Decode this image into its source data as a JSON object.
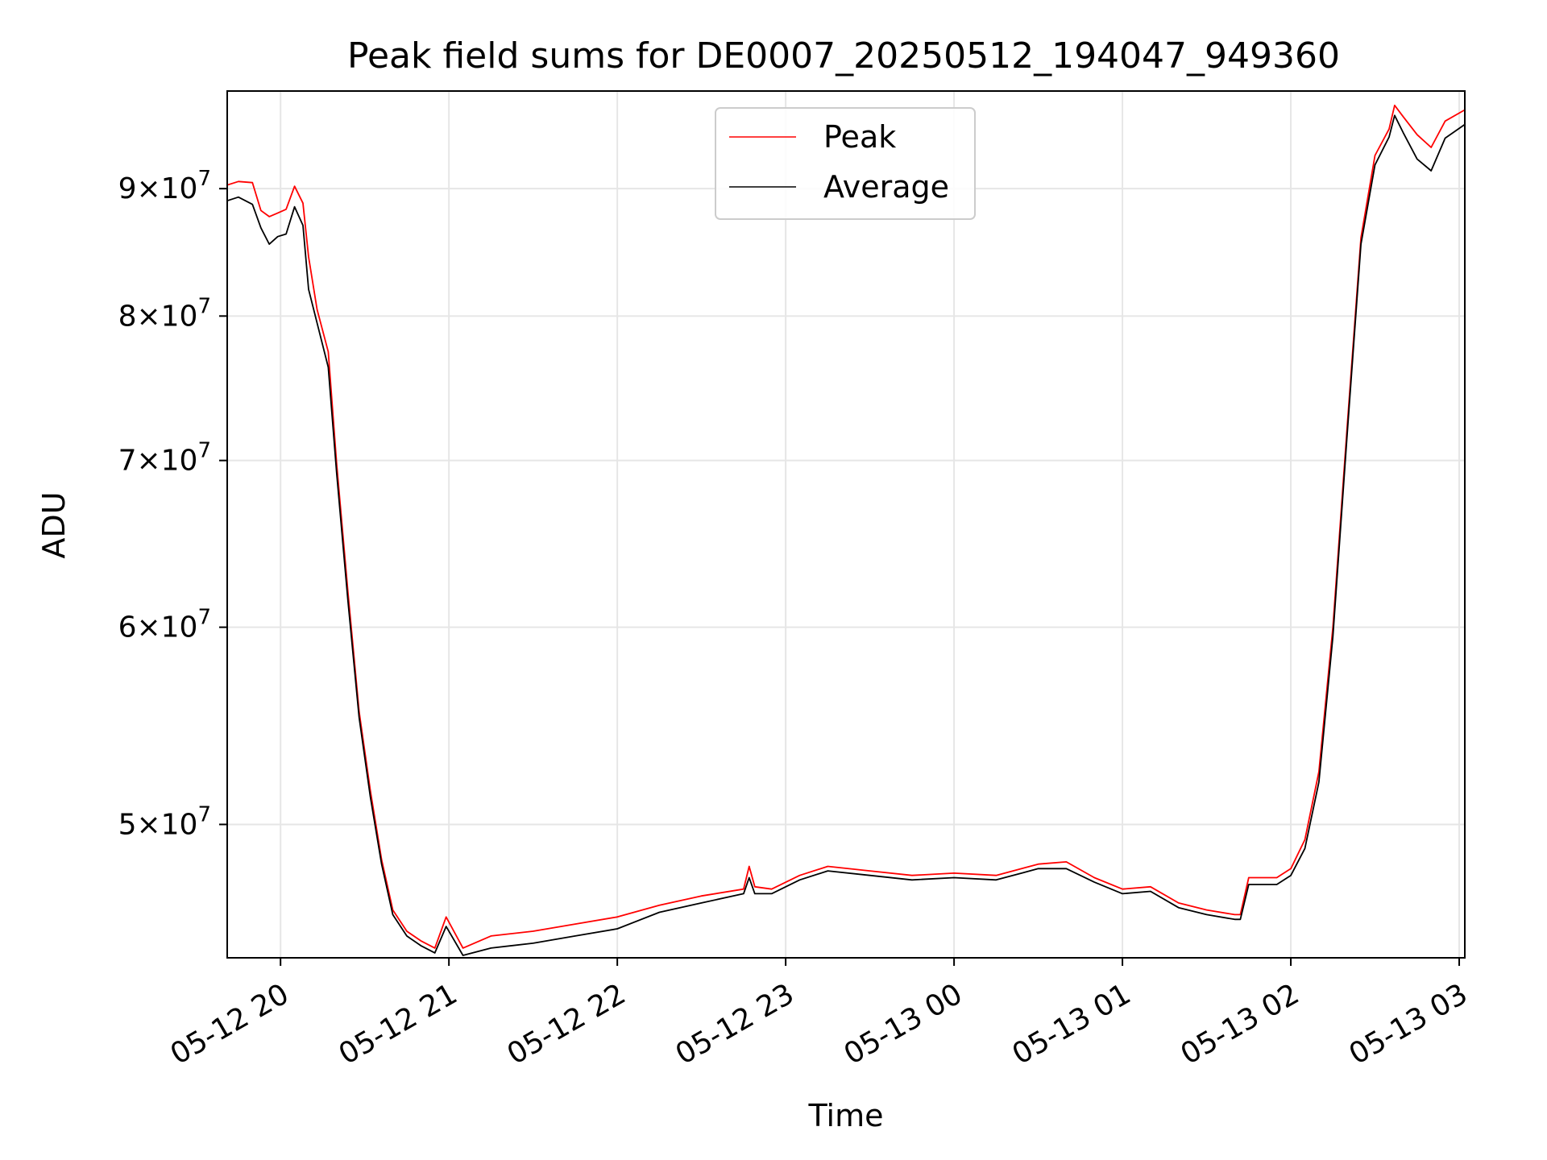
{
  "chart_data": {
    "type": "line",
    "title": "Peak field sums for DE0007_20250512_194047_949360",
    "xlabel": "Time",
    "ylabel": "ADU",
    "y_scale": "log",
    "grid": true,
    "legend_position": "top-center",
    "xlim": [
      "2025-05-12 19:41",
      "2025-05-13 03:02"
    ],
    "ylim": [
      44200000,
      98500000
    ],
    "x_ticks": [
      {
        "value": "2025-05-12 20:00",
        "label": "05-12 20"
      },
      {
        "value": "2025-05-12 21:00",
        "label": "05-12 21"
      },
      {
        "value": "2025-05-12 22:00",
        "label": "05-12 22"
      },
      {
        "value": "2025-05-12 23:00",
        "label": "05-12 23"
      },
      {
        "value": "2025-05-13 00:00",
        "label": "05-13 00"
      },
      {
        "value": "2025-05-13 01:00",
        "label": "05-13 01"
      },
      {
        "value": "2025-05-13 02:00",
        "label": "05-13 02"
      },
      {
        "value": "2025-05-13 03:00",
        "label": "05-13 03"
      }
    ],
    "y_ticks": [
      {
        "value": 50000000,
        "mantissa": "5",
        "base": "10",
        "exponent": "7"
      },
      {
        "value": 60000000,
        "mantissa": "6",
        "base": "10",
        "exponent": "7"
      },
      {
        "value": 70000000,
        "mantissa": "7",
        "base": "10",
        "exponent": "7"
      },
      {
        "value": 80000000,
        "mantissa": "8",
        "base": "10",
        "exponent": "7"
      },
      {
        "value": 90000000,
        "mantissa": "9",
        "base": "10",
        "exponent": "7"
      }
    ],
    "series": [
      {
        "name": "Peak",
        "color": "#ff0000",
        "x": [
          "2025-05-12 19:41",
          "2025-05-12 19:45",
          "2025-05-12 19:50",
          "2025-05-12 19:53",
          "2025-05-12 19:56",
          "2025-05-12 19:59",
          "2025-05-12 20:02",
          "2025-05-12 20:05",
          "2025-05-12 20:08",
          "2025-05-12 20:10",
          "2025-05-12 20:13",
          "2025-05-12 20:17",
          "2025-05-12 20:20",
          "2025-05-12 20:24",
          "2025-05-12 20:28",
          "2025-05-12 20:32",
          "2025-05-12 20:36",
          "2025-05-12 20:40",
          "2025-05-12 20:45",
          "2025-05-12 20:50",
          "2025-05-12 20:55",
          "2025-05-12 20:59",
          "2025-05-12 21:05",
          "2025-05-12 21:15",
          "2025-05-12 21:30",
          "2025-05-12 21:45",
          "2025-05-12 22:00",
          "2025-05-12 22:15",
          "2025-05-12 22:30",
          "2025-05-12 22:45",
          "2025-05-12 22:47",
          "2025-05-12 22:49",
          "2025-05-12 22:55",
          "2025-05-12 23:05",
          "2025-05-12 23:15",
          "2025-05-12 23:30",
          "2025-05-12 23:45",
          "2025-05-13 00:00",
          "2025-05-13 00:15",
          "2025-05-13 00:30",
          "2025-05-13 00:40",
          "2025-05-13 00:50",
          "2025-05-13 01:00",
          "2025-05-13 01:10",
          "2025-05-13 01:20",
          "2025-05-13 01:30",
          "2025-05-13 01:40",
          "2025-05-13 01:42",
          "2025-05-13 01:45",
          "2025-05-13 01:55",
          "2025-05-13 02:00",
          "2025-05-13 02:05",
          "2025-05-13 02:10",
          "2025-05-13 02:15",
          "2025-05-13 02:20",
          "2025-05-13 02:25",
          "2025-05-13 02:30",
          "2025-05-13 02:35",
          "2025-05-13 02:37",
          "2025-05-13 02:40",
          "2025-05-13 02:45",
          "2025-05-13 02:50",
          "2025-05-13 02:55",
          "2025-05-13 03:02"
        ],
        "y": [
          90300000,
          90600000,
          90500000,
          88200000,
          87700000,
          88000000,
          88300000,
          90200000,
          88800000,
          84500000,
          80500000,
          77400000,
          69800000,
          62000000,
          55500000,
          51600000,
          48400000,
          46200000,
          45300000,
          44900000,
          44600000,
          45900000,
          44600000,
          45100000,
          45300000,
          45600000,
          45900000,
          46400000,
          46800000,
          47100000,
          48100000,
          47200000,
          47100000,
          47700000,
          48100000,
          47900000,
          47700000,
          47800000,
          47700000,
          48200000,
          48300000,
          47600000,
          47100000,
          47200000,
          46500000,
          46200000,
          46000000,
          46000000,
          47600000,
          47600000,
          48000000,
          49300000,
          52500000,
          60000000,
          72000000,
          86000000,
          92800000,
          95100000,
          97200000,
          96200000,
          94600000,
          93500000,
          95800000,
          96800000
        ]
      },
      {
        "name": "Average",
        "color": "#000000",
        "x": [
          "2025-05-12 19:41",
          "2025-05-12 19:45",
          "2025-05-12 19:50",
          "2025-05-12 19:53",
          "2025-05-12 19:56",
          "2025-05-12 19:59",
          "2025-05-12 20:02",
          "2025-05-12 20:05",
          "2025-05-12 20:08",
          "2025-05-12 20:10",
          "2025-05-12 20:13",
          "2025-05-12 20:17",
          "2025-05-12 20:20",
          "2025-05-12 20:24",
          "2025-05-12 20:28",
          "2025-05-12 20:32",
          "2025-05-12 20:36",
          "2025-05-12 20:40",
          "2025-05-12 20:45",
          "2025-05-12 20:50",
          "2025-05-12 20:55",
          "2025-05-12 20:59",
          "2025-05-12 21:05",
          "2025-05-12 21:15",
          "2025-05-12 21:30",
          "2025-05-12 21:45",
          "2025-05-12 22:00",
          "2025-05-12 22:15",
          "2025-05-12 22:30",
          "2025-05-12 22:45",
          "2025-05-12 22:47",
          "2025-05-12 22:49",
          "2025-05-12 22:55",
          "2025-05-12 23:05",
          "2025-05-12 23:15",
          "2025-05-12 23:30",
          "2025-05-12 23:45",
          "2025-05-13 00:00",
          "2025-05-13 00:15",
          "2025-05-13 00:30",
          "2025-05-13 00:40",
          "2025-05-13 00:50",
          "2025-05-13 01:00",
          "2025-05-13 01:10",
          "2025-05-13 01:20",
          "2025-05-13 01:30",
          "2025-05-13 01:40",
          "2025-05-13 01:42",
          "2025-05-13 01:45",
          "2025-05-13 01:55",
          "2025-05-13 02:00",
          "2025-05-13 02:05",
          "2025-05-13 02:10",
          "2025-05-13 02:15",
          "2025-05-13 02:20",
          "2025-05-13 02:25",
          "2025-05-13 02:30",
          "2025-05-13 02:35",
          "2025-05-13 02:37",
          "2025-05-13 02:40",
          "2025-05-13 02:45",
          "2025-05-13 02:50",
          "2025-05-13 02:55",
          "2025-05-13 03:02"
        ],
        "y": [
          89000000,
          89300000,
          88700000,
          86800000,
          85500000,
          86100000,
          86300000,
          88500000,
          87000000,
          82000000,
          79500000,
          76300000,
          69200000,
          61500000,
          55200000,
          51300000,
          48200000,
          46000000,
          45100000,
          44700000,
          44400000,
          45500000,
          44300000,
          44600000,
          44800000,
          45100000,
          45400000,
          46100000,
          46500000,
          46900000,
          47600000,
          46900000,
          46900000,
          47500000,
          47900000,
          47700000,
          47500000,
          47600000,
          47500000,
          48000000,
          48000000,
          47400000,
          46900000,
          47000000,
          46300000,
          46000000,
          45800000,
          45800000,
          47300000,
          47300000,
          47700000,
          48900000,
          52000000,
          59500000,
          71500000,
          85500000,
          92000000,
          94400000,
          96300000,
          94800000,
          92500000,
          91500000,
          94300000,
          95500000
        ]
      }
    ]
  }
}
